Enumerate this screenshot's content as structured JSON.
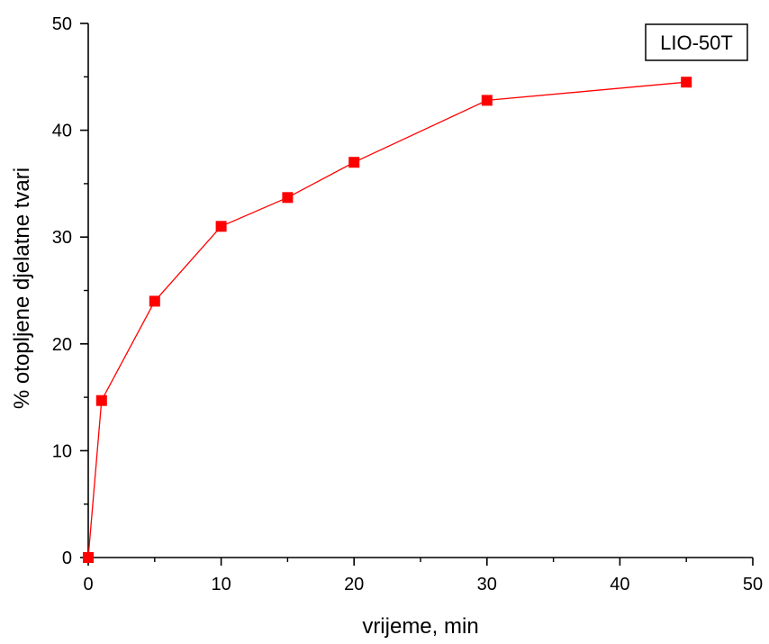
{
  "chart_data": {
    "type": "line",
    "title": "",
    "xlabel": "vrijeme, min",
    "ylabel": "% otopljene djelatne tvari",
    "xlim": [
      0,
      50
    ],
    "ylim": [
      0,
      50
    ],
    "x_ticks": [
      0,
      10,
      20,
      30,
      40,
      50
    ],
    "y_ticks": [
      0,
      10,
      20,
      30,
      40,
      50
    ],
    "x_ticks_label": [
      "0",
      "10",
      "20",
      "30",
      "40",
      "50"
    ],
    "y_ticks_label": [
      "0",
      "10",
      "20",
      "30",
      "40",
      "50"
    ],
    "grid": false,
    "legend_position": "top-right",
    "series": [
      {
        "name": "LIO-50T",
        "color": "#ff0000",
        "marker": "square",
        "x": [
          0,
          1,
          5,
          10,
          15,
          20,
          30,
          45
        ],
        "y": [
          0,
          14.7,
          24.0,
          31.0,
          33.7,
          37.0,
          42.8,
          44.5
        ]
      }
    ]
  }
}
